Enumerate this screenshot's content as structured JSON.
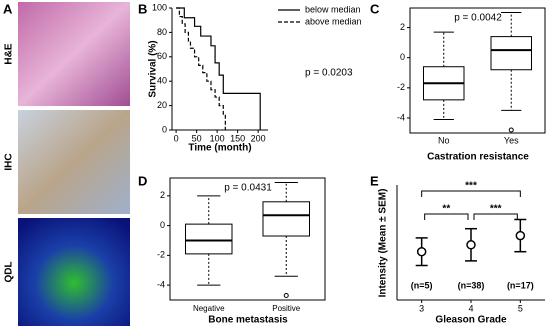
{
  "panel_labels": [
    "A",
    "B",
    "C",
    "D",
    "E"
  ],
  "image_labels": [
    "H&E",
    "IHC",
    "QDL"
  ],
  "chart_data": [
    {
      "type": "step",
      "xlabel": "Time (month)",
      "ylabel": "Survival (%)",
      "annotation": "p = 0.0203",
      "xlim": [
        -10,
        224
      ],
      "xticks": [
        0,
        50,
        100,
        150,
        200
      ],
      "ylim": [
        0,
        100
      ],
      "yticks": [
        0,
        20,
        40,
        60,
        80,
        100
      ],
      "series": [
        {
          "name": "below median",
          "color": "#000000",
          "dashed": false,
          "x": [
            0,
            20,
            20,
            45,
            45,
            60,
            60,
            85,
            85,
            95,
            95,
            105,
            105,
            115,
            115,
            205,
            205
          ],
          "values": [
            100,
            100,
            92,
            92,
            85,
            85,
            77,
            77,
            69,
            69,
            55,
            55,
            45,
            45,
            30,
            30,
            0
          ]
        },
        {
          "name": "above median",
          "color": "#000000",
          "dashed": true,
          "x": [
            0,
            8,
            8,
            15,
            15,
            22,
            22,
            30,
            30,
            35,
            35,
            45,
            45,
            55,
            55,
            65,
            65,
            75,
            75,
            85,
            85,
            95,
            95,
            105,
            105,
            115,
            115,
            120,
            120
          ],
          "values": [
            100,
            100,
            93,
            93,
            87,
            87,
            80,
            80,
            73,
            73,
            67,
            67,
            60,
            60,
            53,
            53,
            47,
            47,
            40,
            40,
            33,
            33,
            27,
            27,
            20,
            20,
            13,
            13,
            0
          ]
        }
      ]
    },
    {
      "type": "box",
      "xlabel": "Castration resistance",
      "annotation": "p = 0.0042",
      "ylim": [
        -5,
        3.3
      ],
      "yticks": [
        -4,
        -2,
        0,
        2
      ],
      "categories": [
        "No",
        "Yes"
      ],
      "boxes": [
        {
          "whisker_low": -4.1,
          "q1": -2.8,
          "median": -1.7,
          "q3": -0.6,
          "whisker_high": 1.7,
          "outliers": []
        },
        {
          "whisker_low": -3.5,
          "q1": -0.8,
          "median": 0.5,
          "q3": 1.4,
          "whisker_high": 3.0,
          "outliers": [
            -4.8
          ]
        }
      ]
    },
    {
      "type": "box",
      "xlabel": "Bone metastasis",
      "annotation": "p = 0.0431",
      "ylim": [
        -5,
        3.2
      ],
      "yticks": [
        -4,
        -2,
        0,
        2
      ],
      "categories": [
        "Negative",
        "Positive"
      ],
      "boxes": [
        {
          "whisker_low": -4.0,
          "q1": -1.9,
          "median": -1.0,
          "q3": 0.1,
          "whisker_high": 2.0,
          "outliers": []
        },
        {
          "whisker_low": -3.4,
          "q1": -0.7,
          "median": 0.7,
          "q3": 1.6,
          "whisker_high": 2.9,
          "outliers": [
            -4.7
          ]
        }
      ]
    },
    {
      "type": "errorbar",
      "xlabel": "Gleason Grade",
      "ylabel": "Intensity (Mean ± SEM)",
      "ylim": [
        0,
        5
      ],
      "categories": [
        "3",
        "4",
        "5"
      ],
      "values": [
        2.1,
        2.4,
        2.8
      ],
      "errors": [
        0.6,
        0.7,
        0.7
      ],
      "annotations": [
        "(n=5)",
        "(n=38)",
        "(n=17)"
      ],
      "significance": [
        {
          "from": 0,
          "to": 2,
          "label": "***"
        },
        {
          "from": 0,
          "to": 1,
          "label": "**"
        },
        {
          "from": 1,
          "to": 2,
          "label": "***"
        }
      ]
    }
  ]
}
